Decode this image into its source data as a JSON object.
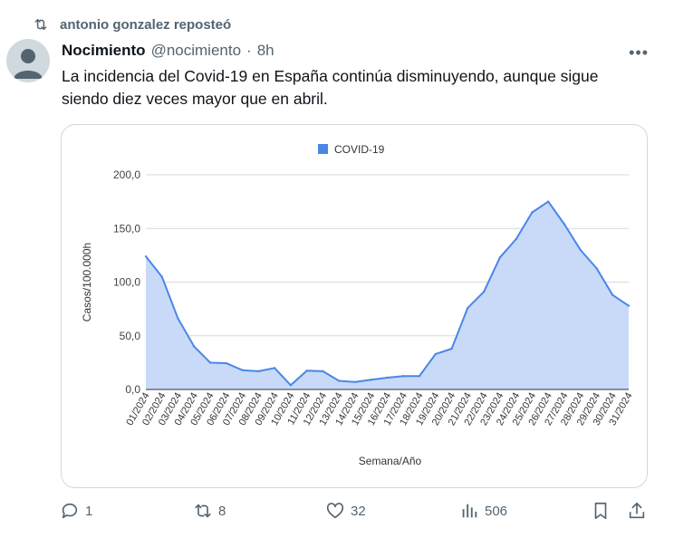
{
  "repost": {
    "text": "antonio gonzalez reposteó",
    "icon": "repost-icon"
  },
  "post": {
    "author": "Nocimiento",
    "handle": "@nocimiento",
    "separator": "·",
    "time": "8h",
    "text": "La incidencia del Covid-19 en España continúa disminuyendo, aunque sigue siendo diez veces mayor que en abril."
  },
  "chart_data": {
    "type": "area",
    "legend": {
      "label": "COVID-19",
      "position": "top"
    },
    "series": [
      {
        "name": "COVID-19",
        "color": "#4a86e8",
        "fill": "#c9daf8",
        "values": [
          124,
          105,
          66,
          40,
          25,
          24.5,
          18,
          17,
          20,
          4,
          17.5,
          17,
          8,
          7,
          9,
          11,
          12.5,
          12.5,
          33,
          38,
          76,
          91,
          123,
          140,
          165,
          175,
          154,
          130,
          113,
          88,
          78
        ]
      }
    ],
    "x": [
      "01/2024",
      "02/2024",
      "03/2024",
      "04/2024",
      "05/2024",
      "06/2024",
      "07/2024",
      "08/2024",
      "09/2024",
      "10/2024",
      "11/2024",
      "12/2024",
      "13/2024",
      "14/2024",
      "15/2024",
      "16/2024",
      "17/2024",
      "18/2024",
      "19/2024",
      "20/2024",
      "21/2024",
      "22/2024",
      "23/2024",
      "24/2024",
      "25/2024",
      "26/2024",
      "27/2024",
      "28/2024",
      "29/2024",
      "30/2024",
      "31/2024"
    ],
    "yticks": [
      "0,0",
      "50,0",
      "100,0",
      "150,0",
      "200,0"
    ],
    "ylim": [
      0,
      200
    ],
    "xlabel": "Semana/Año",
    "ylabel": "Casos/100.000h",
    "grid": true
  },
  "actions": {
    "reply": {
      "count": "1",
      "icon": "reply-icon"
    },
    "repost": {
      "count": "8",
      "icon": "repost-icon"
    },
    "like": {
      "count": "32",
      "icon": "heart-icon"
    },
    "views": {
      "count": "506",
      "icon": "views-icon"
    },
    "bookmark": {
      "icon": "bookmark-icon"
    },
    "share": {
      "icon": "share-icon"
    }
  }
}
